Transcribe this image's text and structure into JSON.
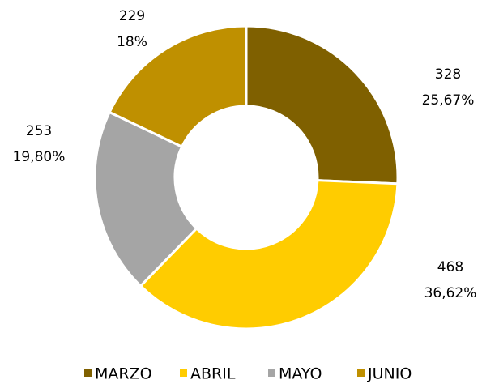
{
  "chart_data": {
    "type": "donut",
    "categories": [
      "MARZO",
      "ABRIL",
      "MAYO",
      "JUNIO"
    ],
    "values": [
      328,
      468,
      253,
      229
    ],
    "percent_labels": [
      "25,67%",
      "36,62%",
      "19,80%",
      "18%"
    ],
    "colors": [
      "#7f6000",
      "#ffcc00",
      "#a5a5a5",
      "#bf9000"
    ],
    "legend": "bottom"
  }
}
